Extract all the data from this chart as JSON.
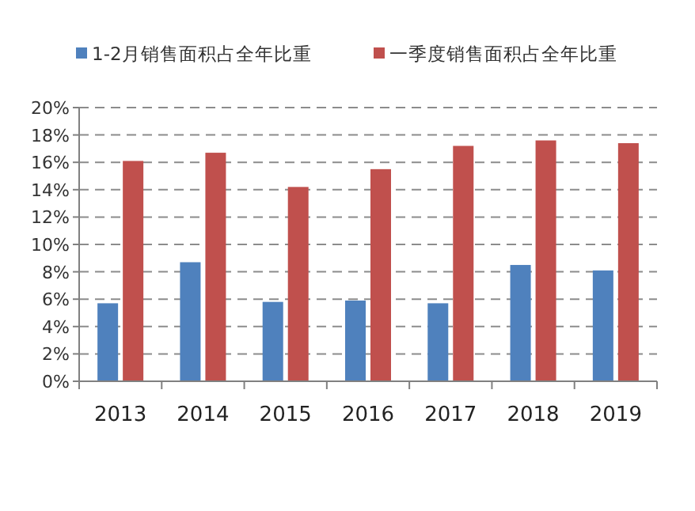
{
  "chart_data": {
    "type": "bar",
    "categories": [
      "2013",
      "2014",
      "2015",
      "2016",
      "2017",
      "2018",
      "2019"
    ],
    "series": [
      {
        "name": "1-2月销售面积占全年比重",
        "color": "#4f81bd",
        "values": [
          5.7,
          8.7,
          5.8,
          5.9,
          5.7,
          8.5,
          8.1
        ]
      },
      {
        "name": "一季度销售面积占全年比重",
        "color": "#c0504d",
        "values": [
          16.1,
          16.7,
          14.2,
          15.5,
          17.2,
          17.6,
          17.4
        ]
      }
    ],
    "ylim": [
      0,
      20
    ],
    "yticks": [
      {
        "value": 0,
        "label": "0%"
      },
      {
        "value": 2,
        "label": "2%"
      },
      {
        "value": 4,
        "label": "4%"
      },
      {
        "value": 6,
        "label": "6%"
      },
      {
        "value": 8,
        "label": "8%"
      },
      {
        "value": 10,
        "label": "10%"
      },
      {
        "value": 12,
        "label": "12%"
      },
      {
        "value": 14,
        "label": "14%"
      },
      {
        "value": 16,
        "label": "16%"
      },
      {
        "value": 18,
        "label": "18%"
      },
      {
        "value": 20,
        "label": "20%"
      }
    ],
    "grid": "y",
    "legend": "top"
  }
}
